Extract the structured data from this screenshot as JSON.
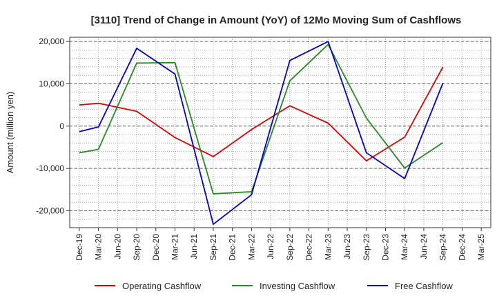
{
  "chart_data": {
    "type": "line",
    "title": "[3110]  Trend of Change in Amount (YoY) of 12Mo Moving Sum of Cashflows",
    "xlabel": "",
    "ylabel": "Amount (million yen)",
    "ylim": [
      -24000,
      21000
    ],
    "yticks": [
      20000,
      10000,
      0,
      -10000,
      -20000
    ],
    "ytick_labels": [
      "20,000",
      "10,000",
      "0",
      "-10,000",
      "-20,000"
    ],
    "categories": [
      "Dec-19",
      "Mar-20",
      "Jun-20",
      "Sep-20",
      "Dec-20",
      "Mar-21",
      "Jun-21",
      "Sep-21",
      "Dec-21",
      "Mar-22",
      "Jun-22",
      "Sep-22",
      "Dec-22",
      "Mar-23",
      "Jun-23",
      "Sep-23",
      "Dec-23",
      "Mar-24",
      "Jun-24",
      "Sep-24",
      "Dec-24",
      "Mar-25"
    ],
    "grid": true,
    "legend_position": "bottom",
    "series": [
      {
        "name": "Operating Cashflow",
        "color": "#e00000",
        "values": [
          5000,
          5400,
          null,
          3500,
          null,
          -2700,
          null,
          -7200,
          null,
          -800,
          null,
          4800,
          null,
          700,
          null,
          -8200,
          null,
          -2600,
          null,
          14000,
          null,
          null
        ]
      },
      {
        "name": "Investing Cashflow",
        "color": "#228b22",
        "values": [
          -6300,
          -5500,
          null,
          14900,
          null,
          15000,
          null,
          -16000,
          null,
          -15500,
          null,
          10700,
          null,
          19300,
          null,
          1900,
          null,
          -9900,
          null,
          -3900,
          null,
          null
        ]
      },
      {
        "name": "Free Cashflow",
        "color": "#0000cc",
        "values": [
          -1300,
          -200,
          null,
          18400,
          null,
          12300,
          null,
          -23200,
          null,
          -16200,
          null,
          15500,
          null,
          20000,
          null,
          -6300,
          null,
          -12400,
          null,
          10200,
          null,
          null
        ]
      }
    ]
  }
}
